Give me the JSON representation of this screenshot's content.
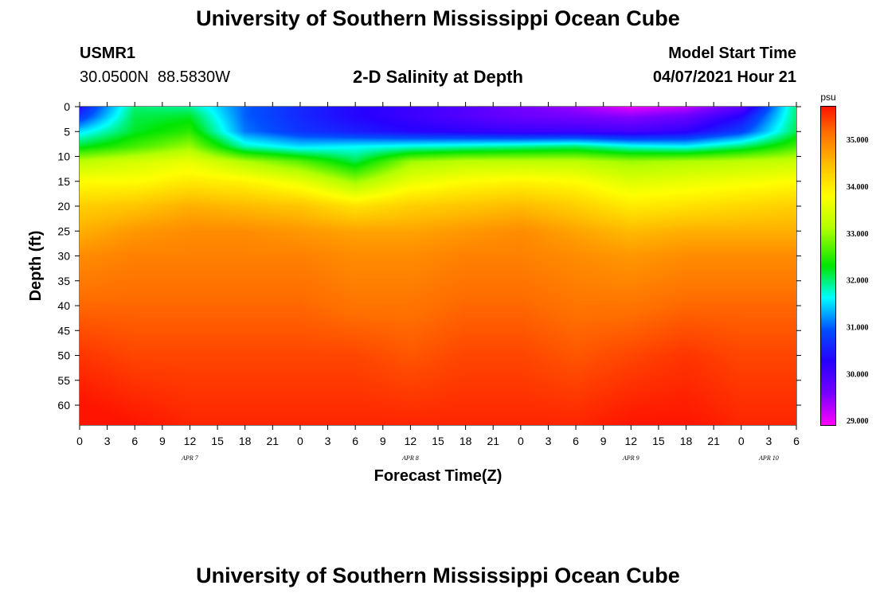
{
  "header": {
    "title": "University of Southern Mississippi Ocean Cube",
    "station_id": "USMR1",
    "station_coords": "30.0500N  88.5830W",
    "plot_title": "2-D Salinity at Depth",
    "model_start_label": "Model Start Time",
    "model_start_value": "04/07/2021 Hour 21"
  },
  "footer": {
    "title": "University of Southern Mississippi Ocean Cube"
  },
  "chart_data": {
    "type": "heatmap",
    "title": "2-D Salinity at Depth",
    "xlabel": "Forecast Time(Z)",
    "ylabel": "Depth (ft)",
    "ylim": [
      0,
      64
    ],
    "y_ticks": [
      0,
      5,
      10,
      15,
      20,
      25,
      30,
      35,
      40,
      45,
      50,
      55,
      60
    ],
    "x_range_hours": [
      0,
      78
    ],
    "x_tick_labels": [
      "0",
      "3",
      "6",
      "9",
      "12",
      "15",
      "18",
      "21",
      "0",
      "3",
      "6",
      "9",
      "12",
      "15",
      "18",
      "21",
      "0",
      "3",
      "6",
      "9",
      "12",
      "15",
      "18",
      "21",
      "0",
      "3",
      "6"
    ],
    "date_labels": [
      {
        "label": "APR 7",
        "hour": 12
      },
      {
        "label": "APR 8",
        "hour": 36
      },
      {
        "label": "APR 9",
        "hour": 60
      },
      {
        "label": "APR 10",
        "hour": 75
      }
    ],
    "colorbar": {
      "unit": "psu",
      "range": [
        28.9,
        35.7
      ],
      "ticks": [
        "29.000",
        "30.000",
        "31.000",
        "32.000",
        "33.000",
        "34.000",
        "35.000"
      ],
      "tick_values": [
        29,
        30,
        31,
        32,
        33,
        34,
        35
      ]
    },
    "grid_hours": [
      0,
      6,
      12,
      18,
      24,
      30,
      36,
      42,
      48,
      54,
      60,
      66,
      72,
      78
    ],
    "grid_depths": [
      0,
      2,
      5,
      8,
      11,
      15,
      20,
      25,
      30,
      40,
      50,
      64
    ],
    "salinity": [
      [
        30.4,
        32.0,
        31.9,
        31.0,
        30.6,
        30.3,
        30.1,
        29.9,
        29.6,
        29.4,
        29.0,
        29.2,
        29.8,
        32.0
      ],
      [
        30.7,
        32.1,
        32.2,
        31.0,
        30.6,
        30.3,
        30.1,
        29.9,
        29.7,
        29.6,
        29.5,
        29.7,
        30.3,
        32.0
      ],
      [
        31.5,
        32.2,
        32.5,
        31.1,
        30.7,
        30.5,
        30.3,
        30.2,
        30.1,
        30.1,
        30.0,
        30.2,
        30.8,
        32.1
      ],
      [
        32.2,
        32.6,
        33.0,
        31.8,
        31.5,
        31.6,
        31.7,
        31.8,
        31.9,
        32.0,
        31.7,
        31.6,
        32.0,
        32.6
      ],
      [
        33.2,
        33.4,
        33.6,
        33.1,
        32.7,
        32.1,
        33.0,
        33.2,
        33.2,
        33.2,
        33.0,
        33.1,
        33.2,
        33.3
      ],
      [
        33.8,
        33.8,
        34.0,
        33.9,
        33.6,
        33.0,
        33.6,
        33.8,
        33.9,
        33.8,
        33.5,
        33.6,
        33.7,
        33.8
      ],
      [
        34.3,
        34.4,
        34.6,
        34.5,
        34.4,
        34.1,
        34.3,
        34.4,
        34.5,
        34.3,
        34.0,
        34.1,
        34.2,
        34.3
      ],
      [
        34.6,
        34.8,
        34.9,
        34.9,
        34.8,
        34.7,
        34.7,
        34.8,
        34.9,
        34.7,
        34.5,
        34.6,
        34.6,
        34.6
      ],
      [
        34.9,
        35.0,
        35.0,
        35.0,
        35.0,
        34.9,
        34.9,
        35.0,
        35.0,
        34.9,
        34.8,
        34.9,
        34.9,
        34.9
      ],
      [
        35.2,
        35.2,
        35.2,
        35.2,
        35.2,
        35.1,
        35.1,
        35.2,
        35.2,
        35.1,
        35.1,
        35.2,
        35.2,
        35.2
      ],
      [
        35.5,
        35.4,
        35.4,
        35.4,
        35.4,
        35.4,
        35.3,
        35.4,
        35.4,
        35.3,
        35.4,
        35.5,
        35.4,
        35.4
      ],
      [
        35.8,
        35.7,
        35.6,
        35.6,
        35.6,
        35.6,
        35.6,
        35.6,
        35.6,
        35.6,
        35.7,
        35.7,
        35.6,
        35.6
      ]
    ]
  }
}
